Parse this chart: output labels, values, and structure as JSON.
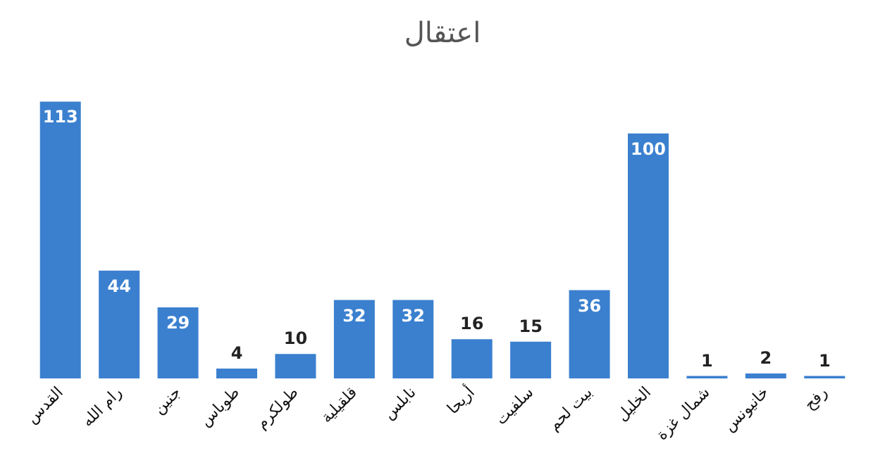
{
  "chart_data": {
    "type": "bar",
    "title": "اعتقال",
    "categories": [
      "القدس",
      "رام الله",
      "جنين",
      "طوباس",
      "طولكرم",
      "قلقيلية",
      "نابلس",
      "أريحا",
      "سلفيت",
      "بيت لحم",
      "الخليل",
      "شمال غزة",
      "خانيونس",
      "رفح"
    ],
    "values": [
      113,
      44,
      29,
      4,
      10,
      32,
      32,
      16,
      15,
      36,
      100,
      1,
      2,
      1
    ],
    "color": "#3b80cf",
    "data_labels": true
  }
}
